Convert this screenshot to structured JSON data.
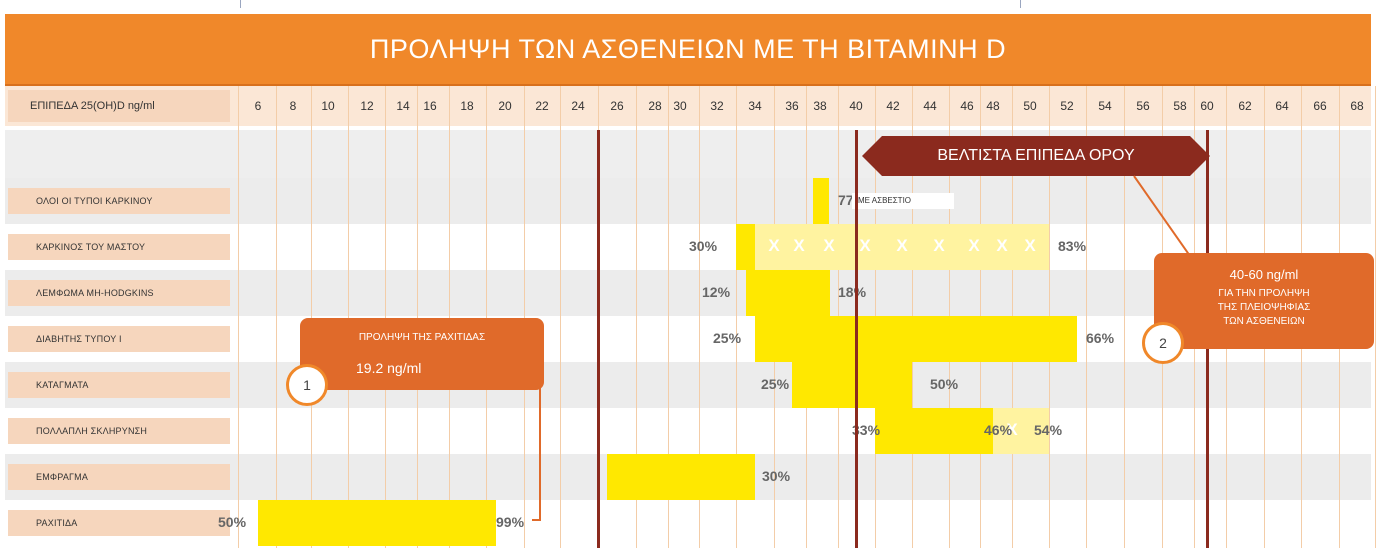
{
  "title": "ΠΡΟΛΗΨΗ ΤΩΝ ΑΣΘΕΝΕΙΩΝ ΜΕ ΤΗ ΒΙΤΑΜΙΝΗ D",
  "header_label": "ΕΠΙΠΕΔΑ 25(ΟΗ)D ng/ml",
  "colors": {
    "title_bg": "#f0882a",
    "bar": "#ffe800",
    "bar_light": "#fff3a0",
    "line": "#8b2a1e",
    "callout": "#e06a2a",
    "banner": "#8b2a1e"
  },
  "chart_data": {
    "type": "bar",
    "orientation": "horizontal",
    "title": "ΠΡΟΛΗΨΗ ΤΩΝ ΑΣΘΕΝΕΙΩΝ ΜΕ ΤΗ ΒΙΤΑΜΙΝΗ D",
    "xlabel": "ΕΠΙΠΕΔΑ 25(ΟΗ)D ng/ml",
    "ticks": [
      6,
      8,
      10,
      12,
      14,
      16,
      18,
      20,
      22,
      24,
      26,
      28,
      30,
      32,
      34,
      36,
      38,
      40,
      42,
      44,
      46,
      48,
      50,
      52,
      54,
      56,
      58,
      60,
      62,
      64,
      66,
      68
    ],
    "rows": [
      {
        "label": "ΟΛΟΙ ΟΙ ΤΥΠΟΙ ΚΑΡΚΙΝΟΥ",
        "segments": [
          {
            "start": 37.5,
            "end": 38.5,
            "style": "solid"
          }
        ],
        "labels": [
          {
            "text": "77%",
            "at": 39.0
          }
        ],
        "note": "ΜΕ ΑΣΒΕΣΤΙΟ"
      },
      {
        "label": "ΚΑΡΚΙΝΟΣ ΤΟΥ ΜΑΣΤΟΥ",
        "segments": [
          {
            "start": 33,
            "end": 34,
            "style": "solid"
          },
          {
            "start": 34,
            "end": 51,
            "style": "light"
          }
        ],
        "marks": [
          35,
          36.5,
          38.5,
          40.5,
          42.5,
          44.5,
          46.5,
          48.5,
          50
        ],
        "labels": [
          {
            "text": "30%",
            "at": 30.5
          },
          {
            "text": "83%",
            "at": 51.5
          }
        ]
      },
      {
        "label": "ΛΕΜΦΩΜΑ ΜΗ-HODGKINS",
        "segments": [
          {
            "start": 33.5,
            "end": 38.5,
            "style": "solid"
          }
        ],
        "labels": [
          {
            "text": "12%",
            "at": 31.2
          },
          {
            "text": "18%",
            "at": 39.0
          }
        ]
      },
      {
        "label": "ΔΙΑΒΗΤΗΣ ΤΥΠΟΥ Ι",
        "segments": [
          {
            "start": 34,
            "end": 52.5,
            "style": "solid"
          }
        ],
        "labels": [
          {
            "text": "25%",
            "at": 31.8
          },
          {
            "text": "66%",
            "at": 53.0
          }
        ]
      },
      {
        "label": "ΚΑΤΑΓΜΑΤΑ",
        "segments": [
          {
            "start": 36,
            "end": 43,
            "style": "solid"
          }
        ],
        "labels": [
          {
            "text": "25%",
            "at": 34.3
          },
          {
            "text": "50%",
            "at": 44.0
          }
        ]
      },
      {
        "label": "ΠΟΛΛΑΠΛΗ ΣΚΛΗΡΥΝΣΗ",
        "segments": [
          {
            "start": 41,
            "end": 48,
            "style": "solid"
          },
          {
            "start": 48,
            "end": 51,
            "style": "light"
          }
        ],
        "marks": [
          49
        ],
        "labels": [
          {
            "text": "33%",
            "at": 39.8
          },
          {
            "text": "46%",
            "at": 47.3
          },
          {
            "text": "54%",
            "at": 50.2
          }
        ]
      },
      {
        "label": "ΕΜΦΡΑΓΜΑ",
        "segments": [
          {
            "start": 25.5,
            "end": 34,
            "style": "solid"
          }
        ],
        "labels": [
          {
            "text": "30%",
            "at": 34.4
          }
        ]
      },
      {
        "label": "ΡΑΧΙΤΙΔΑ",
        "segments": [
          {
            "start": 6,
            "end": 19.5,
            "style": "solid"
          }
        ],
        "labels": [
          {
            "text": "50%",
            "at": 3.7
          },
          {
            "text": "99%",
            "at": 19.5
          }
        ]
      }
    ],
    "reference_lines": [
      25,
      40,
      60
    ],
    "optimal_range": {
      "start": 40,
      "end": 60,
      "label": "ΒΕΛΤΙΣΤΑ ΕΠΙΠΕΔΑ ΟΡΟΥ"
    }
  },
  "callouts": {
    "rickets": {
      "number": "1",
      "title": "ΠΡΟΛΗΨΗ ΤΗΣ ΡΑΧΙΤΙΔΑΣ",
      "value": "19.2 ng/ml"
    },
    "optimal": {
      "number": "2",
      "value": "40-60 ng/ml",
      "lines": [
        "ΓΙΑ ΤΗΝ ΠΡΟΛΗΨΗ",
        "ΤΗΣ ΠΛΕΙΟΨΗΦΙΑΣ",
        "ΤΩΝ ΑΣΘΕΝΕΙΩΝ"
      ]
    }
  }
}
